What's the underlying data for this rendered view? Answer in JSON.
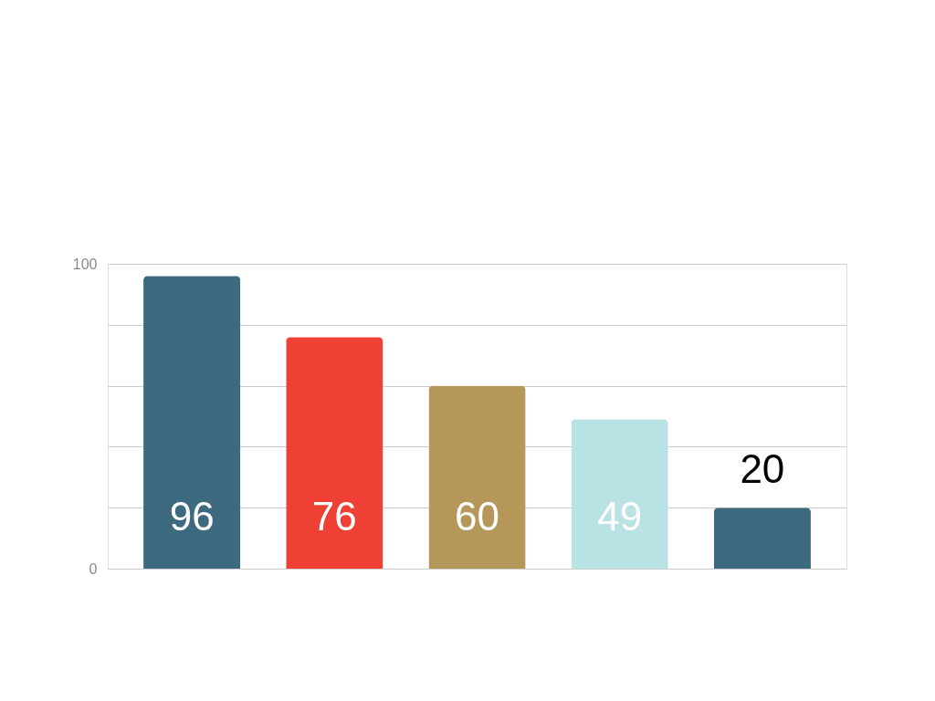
{
  "chart_data": {
    "type": "bar",
    "categories": [
      null,
      null,
      null,
      null,
      null
    ],
    "values": [
      96,
      76,
      60,
      49,
      20
    ],
    "colors": [
      "#3d6a7e",
      "#ef4035",
      "#b49759",
      "#b8e2e3",
      "#3d6a7e"
    ],
    "ylim": [
      0,
      100
    ],
    "yticks": [
      0,
      {
        "value": 20,
        "label": null
      },
      {
        "value": 40,
        "label": null
      },
      {
        "value": 60,
        "label": null
      },
      {
        "value": 80,
        "label": null
      },
      100
    ],
    "grid": "y",
    "data_labels": true
  }
}
